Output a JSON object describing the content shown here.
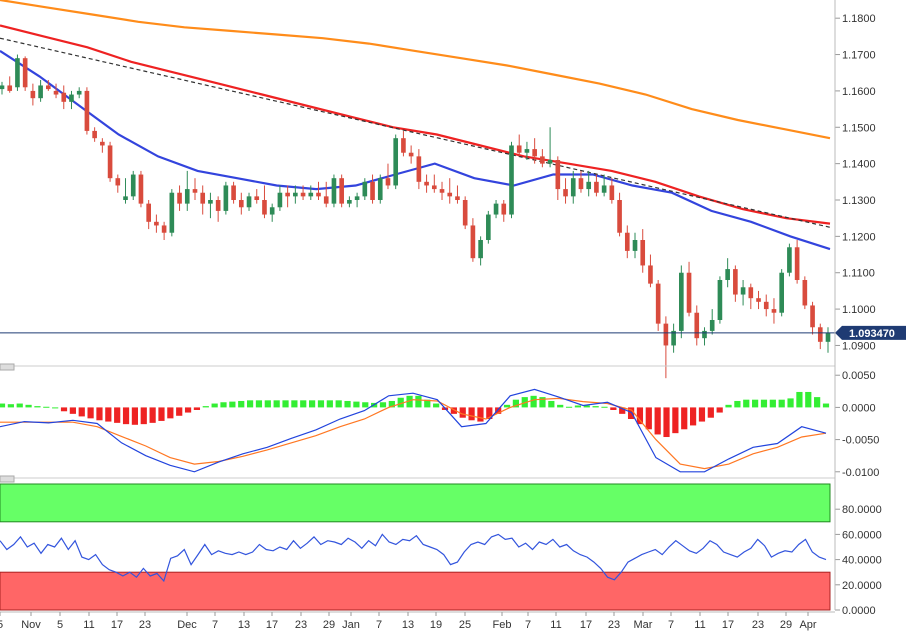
{
  "chart_data": [
    {
      "type": "candlestick",
      "name": "price",
      "y_ticks": [
        "1.1800",
        "1.1700",
        "1.1600",
        "1.1500",
        "1.1400",
        "1.1300",
        "1.1200",
        "1.1100",
        "1.1000",
        "1.0900"
      ],
      "ylim": [
        1.086,
        1.185
      ],
      "last_price_label": "1.093470",
      "last_price": 1.09347,
      "x_ticks": [
        "5",
        "Nov",
        "5",
        "11",
        "17",
        "23",
        "Dec",
        "7",
        "13",
        "17",
        "23",
        "29",
        "Jan",
        "7",
        "13",
        "19",
        "25",
        "Feb",
        "7",
        "11",
        "17",
        "23",
        "Mar",
        "7",
        "11",
        "17",
        "23",
        "29",
        "Apr"
      ],
      "candles_ohlc": [
        [
          1.1605,
          1.1625,
          1.159,
          1.1615
        ],
        [
          1.1615,
          1.164,
          1.1595,
          1.16
        ],
        [
          1.161,
          1.17,
          1.16,
          1.169
        ],
        [
          1.169,
          1.1695,
          1.16,
          1.161
        ],
        [
          1.16,
          1.162,
          1.156,
          1.158
        ],
        [
          1.158,
          1.163,
          1.157,
          1.1615
        ],
        [
          1.1615,
          1.163,
          1.16,
          1.1605
        ],
        [
          1.16,
          1.162,
          1.158,
          1.159
        ],
        [
          1.1595,
          1.1615,
          1.155,
          1.157
        ],
        [
          1.157,
          1.16,
          1.155,
          1.159
        ],
        [
          1.159,
          1.161,
          1.158,
          1.16
        ],
        [
          1.16,
          1.161,
          1.148,
          1.149
        ],
        [
          1.149,
          1.15,
          1.146,
          1.147
        ],
        [
          1.146,
          1.147,
          1.143,
          1.145
        ],
        [
          1.145,
          1.146,
          1.135,
          1.136
        ],
        [
          1.136,
          1.137,
          1.132,
          1.134
        ],
        [
          1.13,
          1.136,
          1.129,
          1.131
        ],
        [
          1.131,
          1.138,
          1.13,
          1.137
        ],
        [
          1.137,
          1.138,
          1.128,
          1.129
        ],
        [
          1.129,
          1.13,
          1.122,
          1.124
        ],
        [
          1.124,
          1.126,
          1.121,
          1.123
        ],
        [
          1.123,
          1.124,
          1.119,
          1.121
        ],
        [
          1.121,
          1.133,
          1.12,
          1.132
        ],
        [
          1.132,
          1.134,
          1.127,
          1.129
        ],
        [
          1.129,
          1.138,
          1.127,
          1.133
        ],
        [
          1.133,
          1.136,
          1.13,
          1.132
        ],
        [
          1.132,
          1.134,
          1.126,
          1.129
        ],
        [
          1.129,
          1.132,
          1.125,
          1.13
        ],
        [
          1.13,
          1.131,
          1.124,
          1.127
        ],
        [
          1.127,
          1.135,
          1.126,
          1.134
        ],
        [
          1.134,
          1.135,
          1.129,
          1.13
        ],
        [
          1.13,
          1.132,
          1.126,
          1.128
        ],
        [
          1.128,
          1.132,
          1.127,
          1.131
        ],
        [
          1.131,
          1.133,
          1.129,
          1.13
        ],
        [
          1.13,
          1.134,
          1.125,
          1.126
        ],
        [
          1.126,
          1.129,
          1.124,
          1.128
        ],
        [
          1.128,
          1.134,
          1.127,
          1.132
        ],
        [
          1.132,
          1.134,
          1.128,
          1.131
        ],
        [
          1.131,
          1.134,
          1.129,
          1.132
        ],
        [
          1.132,
          1.134,
          1.13,
          1.131
        ],
        [
          1.131,
          1.134,
          1.13,
          1.132
        ],
        [
          1.132,
          1.135,
          1.13,
          1.131
        ],
        [
          1.131,
          1.135,
          1.128,
          1.129
        ],
        [
          1.129,
          1.137,
          1.128,
          1.136
        ],
        [
          1.136,
          1.137,
          1.128,
          1.129
        ],
        [
          1.129,
          1.131,
          1.128,
          1.13
        ],
        [
          1.13,
          1.132,
          1.128,
          1.131
        ],
        [
          1.131,
          1.136,
          1.13,
          1.135
        ],
        [
          1.135,
          1.137,
          1.129,
          1.13
        ],
        [
          1.13,
          1.137,
          1.129,
          1.136
        ],
        [
          1.136,
          1.14,
          1.133,
          1.134
        ],
        [
          1.134,
          1.148,
          1.133,
          1.147
        ],
        [
          1.147,
          1.149,
          1.142,
          1.143
        ],
        [
          1.143,
          1.145,
          1.14,
          1.142
        ],
        [
          1.142,
          1.144,
          1.133,
          1.135
        ],
        [
          1.135,
          1.137,
          1.132,
          1.134
        ],
        [
          1.134,
          1.137,
          1.132,
          1.133
        ],
        [
          1.133,
          1.135,
          1.13,
          1.132
        ],
        [
          1.132,
          1.136,
          1.129,
          1.131
        ],
        [
          1.131,
          1.134,
          1.129,
          1.13
        ],
        [
          1.13,
          1.131,
          1.122,
          1.123
        ],
        [
          1.123,
          1.125,
          1.113,
          1.114
        ],
        [
          1.114,
          1.12,
          1.112,
          1.119
        ],
        [
          1.119,
          1.127,
          1.118,
          1.126
        ],
        [
          1.126,
          1.13,
          1.125,
          1.129
        ],
        [
          1.129,
          1.13,
          1.124,
          1.126
        ],
        [
          1.126,
          1.146,
          1.125,
          1.145
        ],
        [
          1.145,
          1.148,
          1.142,
          1.143
        ],
        [
          1.143,
          1.146,
          1.141,
          1.144
        ],
        [
          1.144,
          1.147,
          1.14,
          1.142
        ],
        [
          1.142,
          1.144,
          1.139,
          1.14
        ],
        [
          1.14,
          1.15,
          1.139,
          1.141
        ],
        [
          1.141,
          1.142,
          1.13,
          1.133
        ],
        [
          1.133,
          1.136,
          1.129,
          1.131
        ],
        [
          1.131,
          1.138,
          1.129,
          1.136
        ],
        [
          1.136,
          1.138,
          1.132,
          1.133
        ],
        [
          1.133,
          1.138,
          1.131,
          1.135
        ],
        [
          1.135,
          1.137,
          1.131,
          1.132
        ],
        [
          1.132,
          1.137,
          1.131,
          1.134
        ],
        [
          1.134,
          1.136,
          1.129,
          1.13
        ],
        [
          1.13,
          1.132,
          1.12,
          1.121
        ],
        [
          1.121,
          1.123,
          1.114,
          1.116
        ],
        [
          1.116,
          1.121,
          1.114,
          1.119
        ],
        [
          1.119,
          1.122,
          1.11,
          1.112
        ],
        [
          1.112,
          1.115,
          1.106,
          1.107
        ],
        [
          1.107,
          1.108,
          1.094,
          1.096
        ],
        [
          1.096,
          1.098,
          1.081,
          1.09
        ],
        [
          1.09,
          1.096,
          1.088,
          1.094
        ],
        [
          1.094,
          1.112,
          1.092,
          1.11
        ],
        [
          1.11,
          1.113,
          1.098,
          1.099
        ],
        [
          1.099,
          1.101,
          1.09,
          1.092
        ],
        [
          1.092,
          1.095,
          1.09,
          1.094
        ],
        [
          1.094,
          1.1,
          1.093,
          1.097
        ],
        [
          1.097,
          1.109,
          1.096,
          1.108
        ],
        [
          1.108,
          1.114,
          1.106,
          1.111
        ],
        [
          1.111,
          1.112,
          1.102,
          1.104
        ],
        [
          1.104,
          1.108,
          1.101,
          1.106
        ],
        [
          1.106,
          1.107,
          1.1,
          1.103
        ],
        [
          1.103,
          1.105,
          1.1,
          1.102
        ],
        [
          1.102,
          1.104,
          1.098,
          1.1
        ],
        [
          1.1,
          1.103,
          1.096,
          1.099
        ],
        [
          1.099,
          1.111,
          1.098,
          1.11
        ],
        [
          1.11,
          1.118,
          1.109,
          1.117
        ],
        [
          1.117,
          1.119,
          1.107,
          1.108
        ],
        [
          1.108,
          1.109,
          1.1,
          1.101
        ],
        [
          1.101,
          1.102,
          1.093,
          1.095
        ],
        [
          1.095,
          1.096,
          1.089,
          1.091
        ],
        [
          1.091,
          1.095,
          1.088,
          1.0935
        ]
      ],
      "lines": [
        {
          "color": "#3344dd",
          "values": [
            1.171,
            1.164,
            1.156,
            1.148,
            1.142,
            1.138,
            1.136,
            1.134,
            1.133,
            1.134,
            1.137,
            1.14,
            1.136,
            1.134,
            1.137,
            1.137,
            1.134,
            1.132,
            1.127,
            1.124,
            1.12,
            1.1165
          ]
        },
        {
          "color": "#ee2222",
          "values": [
            1.178,
            1.175,
            1.172,
            1.168,
            1.165,
            1.162,
            1.159,
            1.156,
            1.153,
            1.15,
            1.148,
            1.145,
            1.142,
            1.14,
            1.138,
            1.135,
            1.131,
            1.1275,
            1.125,
            1.1235
          ]
        },
        {
          "color": "#ff8c1a",
          "values": [
            1.185,
            1.183,
            1.181,
            1.179,
            1.1775,
            1.1765,
            1.1755,
            1.1745,
            1.173,
            1.171,
            1.169,
            1.167,
            1.1645,
            1.162,
            1.159,
            1.155,
            1.152,
            1.1495,
            1.147
          ]
        },
        {
          "color": "#333333",
          "style": "dashed",
          "values": [
            1.1745,
            1.1225
          ]
        }
      ]
    },
    {
      "type": "macd",
      "name": "macd",
      "y_ticks": [
        "0.0050",
        "0.0000",
        "-0.0050",
        "-0.0100"
      ],
      "ylim": [
        -0.0105,
        0.0055
      ],
      "histogram": [
        0.0006,
        0.0005,
        0.0006,
        0.0004,
        0.0002,
        0.0001,
        0.0,
        -0.0006,
        -0.001,
        -0.0014,
        -0.0017,
        -0.002,
        -0.0022,
        -0.0024,
        -0.0026,
        -0.0027,
        -0.0026,
        -0.0024,
        -0.0021,
        -0.0017,
        -0.0013,
        -0.0008,
        -0.0004,
        0.0002,
        0.0006,
        0.0008,
        0.0009,
        0.001,
        0.0011,
        0.0011,
        0.0011,
        0.0011,
        0.0011,
        0.0011,
        0.0011,
        0.0011,
        0.0011,
        0.0011,
        0.0011,
        0.001,
        0.0009,
        0.0008,
        0.0007,
        0.0008,
        0.001,
        0.0015,
        0.0018,
        0.0018,
        0.0012,
        0.0006,
        -0.0004,
        -0.001,
        -0.0016,
        -0.002,
        -0.0022,
        -0.0018,
        -0.001,
        0.0004,
        0.0012,
        0.0016,
        0.0018,
        0.0016,
        0.001,
        0.0004,
        0.0001,
        0.0003,
        0.0003,
        0.0002,
        0.0001,
        -0.0004,
        -0.001,
        -0.0018,
        -0.0026,
        -0.0034,
        -0.0042,
        -0.0046,
        -0.004,
        -0.0034,
        -0.0028,
        -0.0022,
        -0.0016,
        -0.0008,
        0.0004,
        0.001,
        0.0012,
        0.0012,
        0.0012,
        0.0012,
        0.0012,
        0.0014,
        0.0024,
        0.0024,
        0.0016,
        0.0006
      ],
      "macd_line": {
        "color": "#2244dd",
        "values": [
          -0.003,
          -0.0022,
          -0.0024,
          -0.002,
          -0.0025,
          -0.0055,
          -0.0075,
          -0.009,
          -0.01,
          -0.0085,
          -0.0072,
          -0.0062,
          -0.0048,
          -0.0035,
          -0.0018,
          -0.0005,
          0.0018,
          0.0022,
          0.0012,
          -0.003,
          -0.0025,
          0.0018,
          0.0028,
          0.0016,
          0.0003,
          0.0008,
          -0.0008,
          -0.0078,
          -0.01,
          -0.01,
          -0.008,
          -0.0062,
          -0.0056,
          -0.003,
          -0.004
        ]
      },
      "signal_line": {
        "color": "#ff7722",
        "values": [
          -0.0023,
          -0.0023,
          -0.0023,
          -0.0023,
          -0.003,
          -0.0045,
          -0.006,
          -0.0078,
          -0.0088,
          -0.0084,
          -0.0076,
          -0.0066,
          -0.0055,
          -0.0044,
          -0.003,
          -0.0018,
          0.0,
          0.0012,
          0.001,
          -0.001,
          -0.0018,
          0.0,
          0.0012,
          0.0014,
          0.0009,
          0.0006,
          -0.0004,
          -0.005,
          -0.0088,
          -0.0095,
          -0.0088,
          -0.0072,
          -0.0062,
          -0.0046,
          -0.004
        ]
      }
    },
    {
      "type": "line",
      "name": "rsi",
      "y_ticks": [
        "80.0000",
        "60.0000",
        "40.0000",
        "20.0000",
        "0.0000"
      ],
      "ylim": [
        0,
        100
      ],
      "overbought_zone": [
        70,
        100
      ],
      "oversold_zone": [
        0,
        30
      ],
      "overbought_color": "#66ff66",
      "oversold_color": "#ff6666",
      "line_color": "#3355dd",
      "values": [
        55,
        48,
        52,
        58,
        50,
        53,
        45,
        52,
        50,
        57,
        48,
        55,
        42,
        40,
        44,
        36,
        32,
        30,
        27,
        30,
        26,
        33,
        27,
        29,
        23,
        41,
        43,
        48,
        36,
        44,
        52,
        44,
        47,
        45,
        44,
        46,
        44,
        46,
        52,
        48,
        47,
        50,
        48,
        55,
        49,
        53,
        58,
        52,
        55,
        54,
        52,
        57,
        54,
        49,
        55,
        51,
        60,
        54,
        52,
        56,
        55,
        59,
        52,
        50,
        48,
        44,
        36,
        38,
        46,
        52,
        54,
        52,
        58,
        60,
        56,
        57,
        50,
        53,
        48,
        54,
        52,
        56,
        50,
        52,
        47,
        44,
        42,
        38,
        33,
        26,
        24,
        30,
        38,
        41,
        44,
        46,
        48,
        44,
        50,
        55,
        51,
        47,
        45,
        49,
        55,
        52,
        46,
        44,
        42,
        46,
        49,
        56,
        51,
        42,
        45,
        47,
        46,
        52,
        56,
        46,
        42,
        40
      ]
    }
  ]
}
